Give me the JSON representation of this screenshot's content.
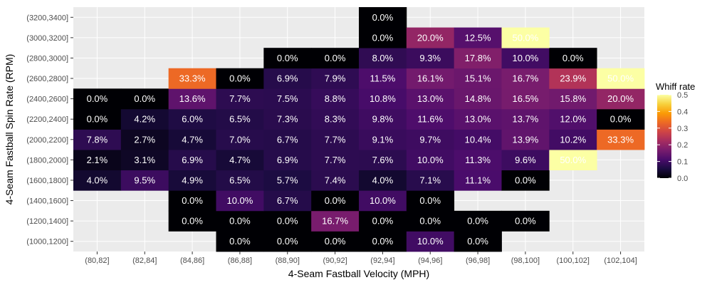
{
  "chart_data": {
    "type": "heatmap",
    "xlabel": "4-Seam Fastball Velocity (MPH)",
    "ylabel": "4-Seam Fastball Spin Rate (RPM)",
    "x_categories": [
      "(80,82]",
      "(82,84]",
      "(84,86]",
      "(86,88]",
      "(88,90]",
      "(90,92]",
      "(92,94]",
      "(94,96]",
      "(96,98]",
      "(98,100]",
      "(100,102]",
      "(102,104]"
    ],
    "y_categories": [
      "(1000,1200]",
      "(1200,1400]",
      "(1400,1600]",
      "(1600,1800]",
      "(1800,2000]",
      "(2000,2200]",
      "(2200,2400]",
      "(2400,2600]",
      "(2600,2800]",
      "(2800,3000]",
      "(3000,3200]",
      "(3200,3400]"
    ],
    "values": [
      [
        null,
        null,
        null,
        0.0,
        0.0,
        0.0,
        0.0,
        0.1,
        0.0,
        null,
        null,
        null
      ],
      [
        null,
        null,
        0.0,
        0.0,
        0.0,
        0.167,
        0.0,
        0.0,
        0.0,
        0.0,
        null,
        null
      ],
      [
        null,
        null,
        0.0,
        0.1,
        0.067,
        0.0,
        0.1,
        0.0,
        null,
        null,
        null,
        null
      ],
      [
        0.04,
        0.095,
        0.049,
        0.065,
        0.057,
        0.074,
        0.04,
        0.071,
        0.111,
        0.0,
        null,
        null
      ],
      [
        0.021,
        0.031,
        0.069,
        0.047,
        0.069,
        0.077,
        0.076,
        0.1,
        0.113,
        0.096,
        0.5,
        null
      ],
      [
        0.078,
        0.027,
        0.047,
        0.07,
        0.067,
        0.077,
        0.091,
        0.097,
        0.104,
        0.139,
        0.102,
        0.333
      ],
      [
        0.0,
        0.042,
        0.06,
        0.065,
        0.073,
        0.083,
        0.098,
        0.116,
        0.13,
        0.137,
        0.12,
        0.0
      ],
      [
        0.0,
        0.0,
        0.136,
        0.077,
        0.075,
        0.088,
        0.108,
        0.13,
        0.148,
        0.165,
        0.158,
        0.2
      ],
      [
        null,
        null,
        0.333,
        0.0,
        0.069,
        0.079,
        0.115,
        0.161,
        0.151,
        0.167,
        0.239,
        0.5
      ],
      [
        null,
        null,
        null,
        null,
        0.0,
        0.0,
        0.08,
        0.093,
        0.178,
        0.1,
        0.0,
        null
      ],
      [
        null,
        null,
        null,
        null,
        null,
        null,
        0.0,
        0.2,
        0.125,
        0.5,
        null,
        null
      ],
      [
        null,
        null,
        null,
        null,
        null,
        null,
        0.0,
        null,
        null,
        null,
        null,
        null
      ]
    ],
    "labels": [
      [
        null,
        null,
        null,
        "0.0%",
        "0.0%",
        "0.0%",
        "0.0%",
        "10.0%",
        "0.0%",
        null,
        null,
        null
      ],
      [
        null,
        null,
        "0.0%",
        "0.0%",
        "0.0%",
        "16.7%",
        "0.0%",
        "0.0%",
        "0.0%",
        "0.0%",
        null,
        null
      ],
      [
        null,
        null,
        "0.0%",
        "10.0%",
        "6.7%",
        "0.0%",
        "10.0%",
        "0.0%",
        null,
        null,
        null,
        null
      ],
      [
        "4.0%",
        "9.5%",
        "4.9%",
        "6.5%",
        "5.7%",
        "7.4%",
        "4.0%",
        "7.1%",
        "11.1%",
        "0.0%",
        null,
        null
      ],
      [
        "2.1%",
        "3.1%",
        "6.9%",
        "4.7%",
        "6.9%",
        "7.7%",
        "7.6%",
        "10.0%",
        "11.3%",
        "9.6%",
        "50.0%",
        null
      ],
      [
        "7.8%",
        "2.7%",
        "4.7%",
        "7.0%",
        "6.7%",
        "7.7%",
        "9.1%",
        "9.7%",
        "10.4%",
        "13.9%",
        "10.2%",
        "33.3%"
      ],
      [
        "0.0%",
        "4.2%",
        "6.0%",
        "6.5%",
        "7.3%",
        "8.3%",
        "9.8%",
        "11.6%",
        "13.0%",
        "13.7%",
        "12.0%",
        "0.0%"
      ],
      [
        "0.0%",
        "0.0%",
        "13.6%",
        "7.7%",
        "7.5%",
        "8.8%",
        "10.8%",
        "13.0%",
        "14.8%",
        "16.5%",
        "15.8%",
        "20.0%"
      ],
      [
        null,
        null,
        "33.3%",
        "0.0%",
        "6.9%",
        "7.9%",
        "11.5%",
        "16.1%",
        "15.1%",
        "16.7%",
        "23.9%",
        "50.0%"
      ],
      [
        null,
        null,
        null,
        null,
        "0.0%",
        "0.0%",
        "8.0%",
        "9.3%",
        "17.8%",
        "10.0%",
        "0.0%",
        null
      ],
      [
        null,
        null,
        null,
        null,
        null,
        null,
        "0.0%",
        "20.0%",
        "12.5%",
        "50.0%",
        null,
        null
      ],
      [
        null,
        null,
        null,
        null,
        null,
        null,
        "0.0%",
        null,
        null,
        null,
        null,
        null
      ]
    ],
    "color_scale": {
      "name": "inferno",
      "range": [
        0,
        0.5
      ],
      "stops": [
        "#000004",
        "#1b0c41",
        "#4a0c6b",
        "#781c6d",
        "#a52c60",
        "#cf4446",
        "#ed6925",
        "#fb9b06",
        "#f7d13d",
        "#fcffa4"
      ]
    },
    "legend": {
      "title": "Whiff rate",
      "ticks": [
        {
          "value": 0.5,
          "label": "0.5"
        },
        {
          "value": 0.4,
          "label": "0.4"
        },
        {
          "value": 0.3,
          "label": "0.3"
        },
        {
          "value": 0.2,
          "label": "0.2"
        },
        {
          "value": 0.1,
          "label": "0.1"
        },
        {
          "value": 0.0,
          "label": "0.0"
        }
      ],
      "position": "right"
    },
    "panel_background": "#ebebeb",
    "grid_color": "#ffffff",
    "grid": true
  }
}
